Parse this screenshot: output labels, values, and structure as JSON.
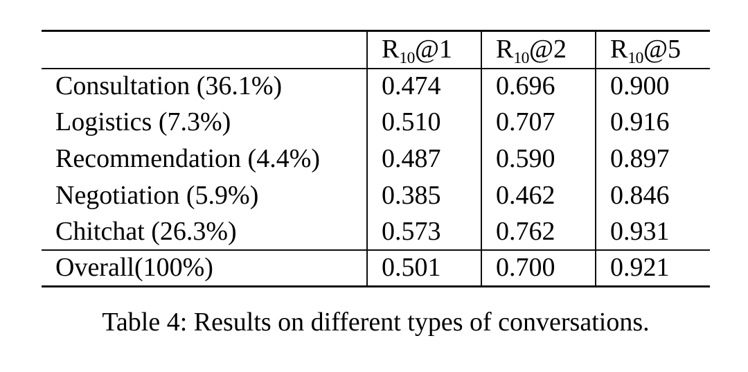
{
  "caption": "Table 4: Results on different types of conversations.",
  "table": {
    "corner_label": "",
    "columns": [
      {
        "base": "R",
        "sub": "10",
        "at": "@1"
      },
      {
        "base": "R",
        "sub": "10",
        "at": "@2"
      },
      {
        "base": "R",
        "sub": "10",
        "at": "@5"
      }
    ],
    "rows": [
      {
        "label": "Consultation (36.1%)",
        "values": [
          "0.474",
          "0.696",
          "0.900"
        ]
      },
      {
        "label": "Logistics (7.3%)",
        "values": [
          "0.510",
          "0.707",
          "0.916"
        ]
      },
      {
        "label": "Recommendation (4.4%)",
        "values": [
          "0.487",
          "0.590",
          "0.897"
        ]
      },
      {
        "label": "Negotiation (5.9%)",
        "values": [
          "0.385",
          "0.462",
          "0.846"
        ]
      },
      {
        "label": "Chitchat (26.3%)",
        "values": [
          "0.573",
          "0.762",
          "0.931"
        ]
      }
    ],
    "overall_row": {
      "label": "Overall(100%)",
      "values": [
        "0.501",
        "0.700",
        "0.921"
      ]
    }
  },
  "chart_data": {
    "type": "table",
    "title": "Table 4: Results on different types of conversations.",
    "categories": [
      "Consultation (36.1%)",
      "Logistics (7.3%)",
      "Recommendation (4.4%)",
      "Negotiation (5.9%)",
      "Chitchat (26.3%)",
      "Overall(100%)"
    ],
    "series": [
      {
        "name": "R10@1",
        "values": [
          0.474,
          0.51,
          0.487,
          0.385,
          0.573,
          0.501
        ]
      },
      {
        "name": "R10@2",
        "values": [
          0.696,
          0.707,
          0.59,
          0.462,
          0.762,
          0.7
        ]
      },
      {
        "name": "R10@5",
        "values": [
          0.9,
          0.916,
          0.897,
          0.846,
          0.931,
          0.921
        ]
      }
    ]
  }
}
